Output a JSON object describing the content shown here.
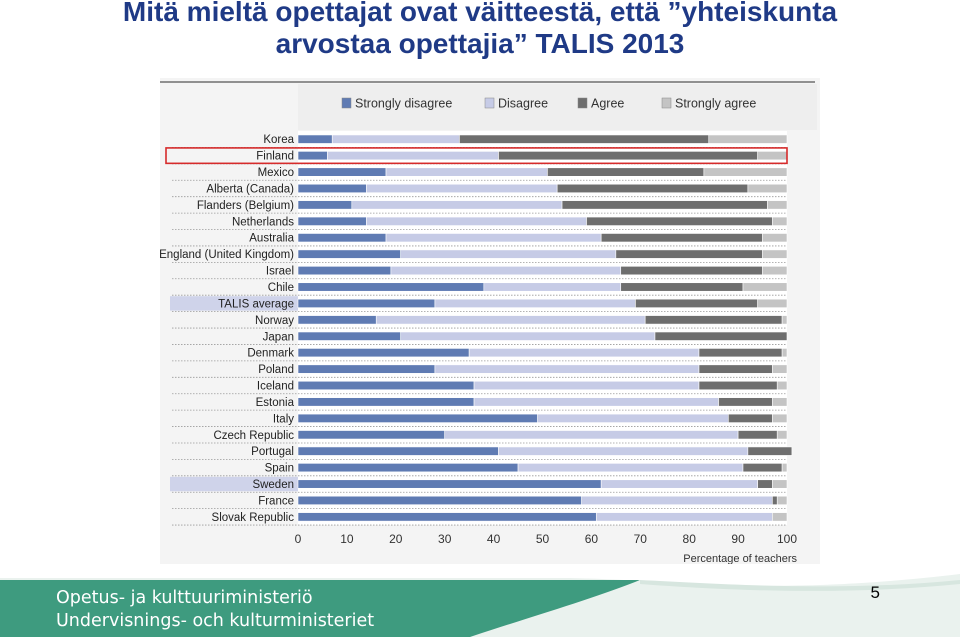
{
  "slide": {
    "title_line1": "Mitä mieltä opettajat ovat väitteestä, että ”yhteiskunta",
    "title_line2": "arvostaa opettajia” TALIS 2013",
    "footer_fi": "Opetus- ja kulttuuriministeriö",
    "footer_sv": "Undervisnings- och kulturministeriet",
    "page_number": "5"
  },
  "colors": {
    "strongly_disagree": "#5f7bb3",
    "disagree": "#c6cbe6",
    "agree": "#6e6e6e",
    "strongly_agree": "#c4c4c4",
    "title": "#1f3a86",
    "highlight_box": "#d62b2b",
    "footer_green": "#3e9b7f"
  },
  "chart_data": {
    "type": "bar",
    "orientation": "horizontal-stacked",
    "categories": [
      "Korea",
      "Finland",
      "Mexico",
      "Alberta (Canada)",
      "Flanders (Belgium)",
      "Netherlands",
      "Australia",
      "England (United Kingdom)",
      "Israel",
      "Chile",
      "TALIS average",
      "Norway",
      "Japan",
      "Denmark",
      "Poland",
      "Iceland",
      "Estonia",
      "Italy",
      "Czech Republic",
      "Portugal",
      "Spain",
      "Sweden",
      "France",
      "Slovak Republic"
    ],
    "highlighted": [
      "TALIS average",
      "Sweden"
    ],
    "boxed": [
      "Finland"
    ],
    "series": [
      {
        "name": "Strongly disagree",
        "color_key": "strongly_disagree",
        "values": [
          7,
          6,
          18,
          14,
          11,
          14,
          18,
          21,
          19,
          38,
          28,
          16,
          21,
          35,
          28,
          36,
          36,
          49,
          30,
          41,
          45,
          62,
          58,
          61
        ]
      },
      {
        "name": "Disagree",
        "color_key": "disagree",
        "values": [
          26,
          35,
          33,
          39,
          43,
          45,
          44,
          44,
          47,
          28,
          41,
          55,
          52,
          47,
          54,
          46,
          50,
          39,
          60,
          51,
          46,
          32,
          39,
          36
        ]
      },
      {
        "name": "Agree",
        "color_key": "agree",
        "values": [
          51,
          53,
          32,
          39,
          42,
          38,
          33,
          30,
          29,
          25,
          25,
          28,
          27,
          17,
          15,
          16,
          11,
          9,
          8,
          9,
          8,
          3,
          1,
          0
        ]
      },
      {
        "name": "Strongly agree",
        "color_key": "strongly_agree",
        "values": [
          16,
          6,
          17,
          8,
          4,
          3,
          5,
          5,
          5,
          9,
          6,
          1,
          0,
          1,
          3,
          2,
          3,
          3,
          2,
          0,
          1,
          3,
          2,
          3
        ]
      }
    ],
    "xlabel": "Percentage of teachers",
    "xlim": [
      0,
      100
    ],
    "xticks": [
      0,
      10,
      20,
      30,
      40,
      50,
      60,
      70,
      80,
      90,
      100
    ],
    "legend_position": "top",
    "grid": false
  }
}
